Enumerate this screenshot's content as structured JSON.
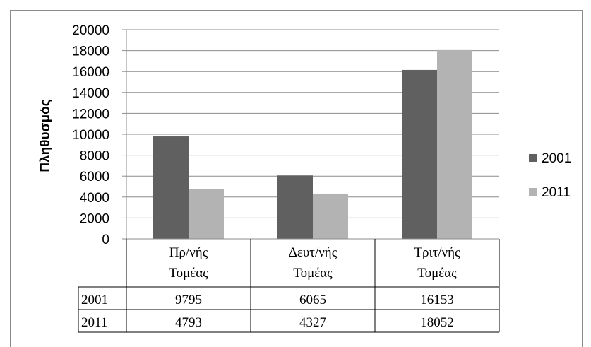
{
  "chart_data": {
    "type": "bar",
    "title": "",
    "ylabel": "Πληθυσμός",
    "xlabel": "",
    "ylim": [
      0,
      20000
    ],
    "yticks": [
      "0",
      "2000",
      "4000",
      "6000",
      "8000",
      "10000",
      "12000",
      "14000",
      "16000",
      "18000",
      "20000"
    ],
    "categories": [
      [
        "Πρ/νής",
        "Τομέας"
      ],
      [
        "Δευτ/νής",
        "Τομέας"
      ],
      [
        "Τριτ/νής",
        "Τομέας"
      ]
    ],
    "series": [
      {
        "name": "2001",
        "values": [
          9795,
          6065,
          16153
        ],
        "color": "#606060"
      },
      {
        "name": "2011",
        "values": [
          4793,
          4327,
          18052
        ],
        "color": "#b3b3b3"
      }
    ],
    "grid": true,
    "legend_position": "right",
    "data_table": true
  }
}
